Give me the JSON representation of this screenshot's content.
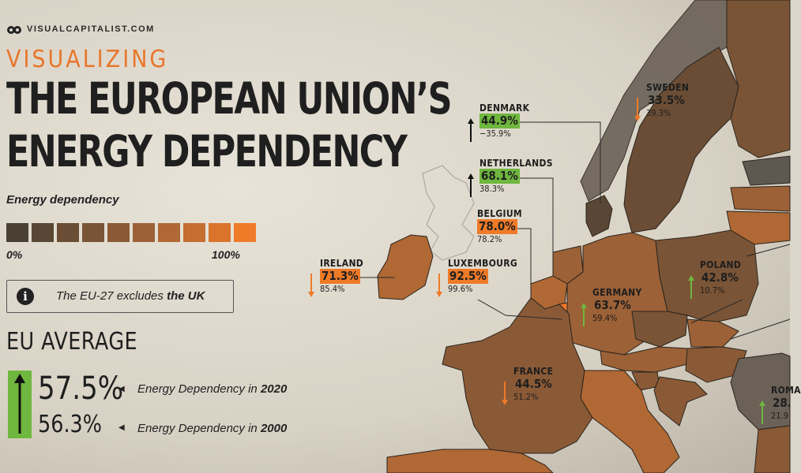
{
  "brand": "VISUALCAPITALIST.COM",
  "header": {
    "kicker": "VISUALIZING",
    "title_line1": "THE EUROPEAN UNION’S",
    "title_line2": "ENERGY DEPENDENCY"
  },
  "legend": {
    "label": "Energy dependency",
    "min_label": "0%",
    "max_label": "100%",
    "scale_colors": [
      "#4a3f33",
      "#5a4634",
      "#6b4d35",
      "#7a5436",
      "#8a5a36",
      "#9c6136",
      "#b06834",
      "#c46e31",
      "#da742d",
      "#ef7a28"
    ]
  },
  "note": {
    "icon": "info-icon",
    "text_prefix": "The EU-27 excludes ",
    "text_bold": "the UK"
  },
  "eu_average": {
    "title": "EU AVERAGE",
    "value_2020": "57.5%",
    "value_2000": "56.3%",
    "label_2020_prefix": "Energy Dependency in ",
    "label_2020_year": "2020",
    "label_2000_prefix": "Energy Dependency in ",
    "label_2000_year": "2000",
    "trend": "up",
    "trend_color": "#6fb73f"
  },
  "colors": {
    "increase": "#6fb73f",
    "decrease": "#ef7a28",
    "neutral_arrow": "#9a9a9a"
  },
  "countries": [
    {
      "name": "DENMARK",
      "v2020": "44.9%",
      "v2000": "−35.9%",
      "trend": "up",
      "highlight": "green"
    },
    {
      "name": "NETHERLANDS",
      "v2020": "68.1%",
      "v2000": "38.3%",
      "trend": "up",
      "highlight": "green"
    },
    {
      "name": "BELGIUM",
      "v2020": "78.0%",
      "v2000": "78.2%",
      "trend": "none",
      "highlight": "orange"
    },
    {
      "name": "IRELAND",
      "v2020": "71.3%",
      "v2000": "85.4%",
      "trend": "down",
      "highlight": "orange"
    },
    {
      "name": "LUXEMBOURG",
      "v2020": "92.5%",
      "v2000": "99.6%",
      "trend": "down",
      "highlight": "orange"
    },
    {
      "name": "SWEDEN",
      "v2020": "33.5%",
      "v2000": "39.3%",
      "trend": "down",
      "highlight": "none"
    },
    {
      "name": "GERMANY",
      "v2020": "63.7%",
      "v2000": "59.4%",
      "trend": "up",
      "highlight": "none"
    },
    {
      "name": "POLAND",
      "v2020": "42.8%",
      "v2000": "10.7%",
      "trend": "up",
      "highlight": "none"
    },
    {
      "name": "FRANCE",
      "v2020": "44.5%",
      "v2000": "51.2%",
      "trend": "down",
      "highlight": "none"
    },
    {
      "name": "ROMA",
      "v2020": "28.",
      "v2000": "21.9",
      "trend": "up",
      "highlight": "none"
    }
  ]
}
